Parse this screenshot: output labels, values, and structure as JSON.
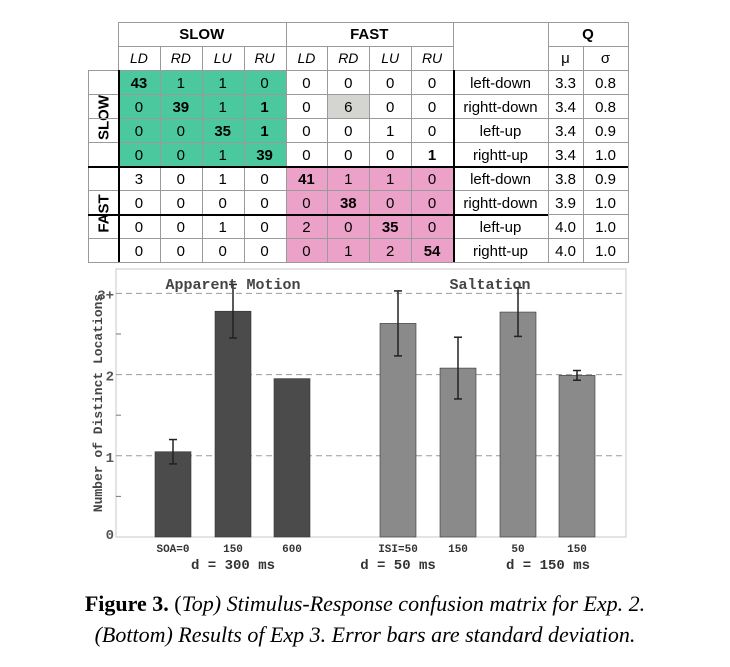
{
  "matrix": {
    "group_labels": {
      "slow": "SLOW",
      "fast": "FAST",
      "q": "Q"
    },
    "col_headers": [
      "LD",
      "RD",
      "LU",
      "RU",
      "LD",
      "RD",
      "LU",
      "RU"
    ],
    "stat_headers": {
      "mu": "μ",
      "sigma": "σ"
    },
    "row_group_labels": {
      "slow": "SLOW",
      "fast": "FAST"
    },
    "rows": [
      {
        "values": [
          "43",
          "1",
          "1",
          "0",
          "0",
          "0",
          "0",
          "0"
        ],
        "label": "left-down",
        "mu": "3.3",
        "sigma": "0.8"
      },
      {
        "values": [
          "0",
          "39",
          "1",
          "1",
          "0",
          "6",
          "0",
          "0"
        ],
        "label": "rightt-down",
        "mu": "3.4",
        "sigma": "0.8"
      },
      {
        "values": [
          "0",
          "0",
          "35",
          "1",
          "0",
          "0",
          "1",
          "0"
        ],
        "label": "left-up",
        "mu": "3.4",
        "sigma": "0.9"
      },
      {
        "values": [
          "0",
          "0",
          "1",
          "39",
          "0",
          "0",
          "0",
          "1"
        ],
        "label": "rightt-up",
        "mu": "3.4",
        "sigma": "1.0"
      },
      {
        "values": [
          "3",
          "0",
          "1",
          "0",
          "41",
          "1",
          "1",
          "0"
        ],
        "label": "left-down",
        "mu": "3.8",
        "sigma": "0.9"
      },
      {
        "values": [
          "0",
          "0",
          "0",
          "0",
          "0",
          "38",
          "0",
          "0"
        ],
        "label": "rightt-down",
        "mu": "3.9",
        "sigma": "1.0"
      },
      {
        "values": [
          "0",
          "0",
          "1",
          "0",
          "2",
          "0",
          "35",
          "0"
        ],
        "label": "left-up",
        "mu": "4.0",
        "sigma": "1.0"
      },
      {
        "values": [
          "0",
          "0",
          "0",
          "0",
          "0",
          "1",
          "2",
          "54"
        ],
        "label": "rightt-up",
        "mu": "4.0",
        "sigma": "1.0"
      }
    ],
    "colors": {
      "slow_highlight": "#4cc89e",
      "fast_highlight": "#eca2c8",
      "gray_cell": "#d4d4d0"
    }
  },
  "chart_data": {
    "type": "bar",
    "ylabel": "Number of Distinct Locations",
    "ylim": [
      0,
      3.3
    ],
    "yticks": [
      {
        "value": 0,
        "label": "0"
      },
      {
        "value": 1,
        "label": "1"
      },
      {
        "value": 2,
        "label": "2"
      },
      {
        "value": 3,
        "label": "3+"
      }
    ],
    "grid": true,
    "titles": [
      "Apparent Motion",
      "Saltation"
    ],
    "categories": [
      "SOA=0",
      "150",
      "600",
      "ISI=50",
      "150",
      "50",
      "150"
    ],
    "values": [
      1.05,
      2.78,
      1.95,
      2.63,
      2.08,
      2.77,
      1.99
    ],
    "errors": [
      0.15,
      0.33,
      0.0,
      0.4,
      0.38,
      0.3,
      0.06
    ],
    "groups": [
      "d = 300 ms",
      "d = 50 ms",
      "d = 150 ms"
    ],
    "colors": {
      "dark": "#4b4b4b",
      "light": "#8a8a8a"
    }
  },
  "caption": {
    "figure_label": "Figure 3.",
    "paren_open": "(",
    "top_word": "Top",
    "line1_rest": ") Stimulus-Response confusion matrix for Exp. 2.",
    "line2": "(Bottom) Results of Exp 3. Error bars are standard deviation."
  }
}
